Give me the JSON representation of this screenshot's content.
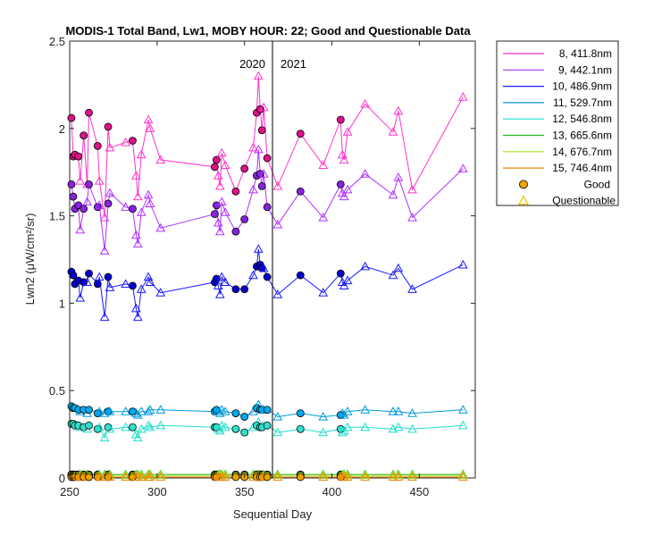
{
  "chart_data": {
    "type": "line",
    "title": "MODIS-1 Total Band, Lw1, MOBY HOUR: 22;  Good and Questionable Data",
    "xlabel": "Sequential Day",
    "ylabel": "Lwn2 (μW/cm²/sr)",
    "xlim": [
      250,
      482
    ],
    "ylim": [
      0,
      2.5
    ],
    "xticks": [
      250,
      300,
      350,
      400,
      450
    ],
    "yticks": [
      0,
      0.5,
      1,
      1.5,
      2,
      2.5
    ],
    "xtick_labels": [
      "250",
      "300",
      "350",
      "400",
      "450"
    ],
    "ytick_labels": [
      "0",
      "0.5",
      "1",
      "1.5",
      "2",
      "2.5"
    ],
    "grid": false,
    "legend_position": "outside-top-right",
    "year_divider": {
      "x": 366,
      "left_label": "2020",
      "right_label": "2021"
    },
    "marker_legend": [
      {
        "label": "Good",
        "marker": "circle",
        "color": "#f0a500"
      },
      {
        "label": "Questionable",
        "marker": "triangle",
        "color": "#f0c000"
      }
    ],
    "x": [
      251,
      252,
      253,
      255,
      256,
      258,
      260,
      261,
      266,
      267,
      270,
      272,
      273,
      282,
      286,
      288,
      289,
      291,
      295,
      296,
      302,
      333,
      334,
      335,
      336,
      337,
      339,
      345,
      350,
      355,
      357,
      358,
      359,
      360,
      361,
      363,
      369,
      382,
      395,
      405,
      406,
      407,
      409,
      419,
      435,
      438,
      446,
      475
    ],
    "status": [
      "G",
      "G",
      "G",
      "G",
      "Q",
      "G",
      "Q",
      "G",
      "G",
      "Q",
      "Q",
      "G",
      "Q",
      "Q",
      "G",
      "Q",
      "Q",
      "Q",
      "Q",
      "Q",
      "Q",
      "G",
      "G",
      "Q",
      "Q",
      "Q",
      "Q",
      "G",
      "G",
      "Q",
      "G",
      "Q",
      "G",
      "G",
      "Q",
      "G",
      "Q",
      "G",
      "Q",
      "G",
      "Q",
      "Q",
      "Q",
      "Q",
      "Q",
      "Q",
      "Q",
      "Q"
    ],
    "series": [
      {
        "name": "8, 411.8nm",
        "color": "#ff33cc",
        "fill": "#dd1188",
        "values": [
          2.06,
          1.84,
          1.85,
          1.84,
          1.7,
          1.96,
          1.68,
          2.09,
          1.9,
          1.7,
          1.49,
          2.01,
          1.89,
          1.92,
          1.93,
          1.73,
          1.61,
          1.85,
          2.05,
          2.0,
          1.82,
          1.78,
          1.82,
          1.73,
          1.67,
          1.86,
          1.79,
          1.64,
          1.77,
          1.89,
          2.09,
          2.3,
          2.11,
          1.99,
          2.12,
          1.83,
          1.67,
          1.97,
          1.79,
          2.05,
          1.85,
          1.82,
          1.98,
          2.14,
          1.98,
          2.1,
          1.65,
          2.18
        ]
      },
      {
        "name": "9, 442.1nm",
        "color": "#b030ff",
        "fill": "#8822dd",
        "values": [
          1.68,
          1.61,
          1.54,
          1.56,
          1.42,
          1.54,
          1.58,
          1.68,
          1.55,
          1.56,
          1.3,
          1.57,
          1.63,
          1.55,
          1.54,
          1.39,
          1.34,
          1.52,
          1.62,
          1.57,
          1.43,
          1.51,
          1.56,
          1.46,
          1.41,
          1.58,
          1.52,
          1.41,
          1.48,
          1.65,
          1.73,
          1.88,
          1.74,
          1.67,
          1.74,
          1.55,
          1.45,
          1.64,
          1.49,
          1.68,
          1.63,
          1.61,
          1.65,
          1.74,
          1.62,
          1.72,
          1.49,
          1.77
        ]
      },
      {
        "name": "10, 486.9nm",
        "color": "#1a1aff",
        "fill": "#0000cc",
        "values": [
          1.18,
          1.16,
          1.11,
          1.13,
          1.03,
          1.12,
          1.12,
          1.17,
          1.11,
          1.15,
          0.92,
          1.15,
          1.09,
          1.11,
          1.1,
          0.97,
          0.92,
          1.08,
          1.15,
          1.12,
          1.06,
          1.12,
          1.14,
          1.1,
          1.05,
          1.15,
          1.12,
          1.08,
          1.08,
          1.16,
          1.21,
          1.31,
          1.22,
          1.2,
          1.2,
          1.15,
          1.05,
          1.16,
          1.06,
          1.17,
          1.12,
          1.1,
          1.13,
          1.21,
          1.16,
          1.2,
          1.08,
          1.22
        ]
      },
      {
        "name": "11, 529.7nm",
        "color": "#0099dd",
        "fill": "#00aaee",
        "values": [
          0.41,
          0.4,
          0.4,
          0.39,
          0.38,
          0.39,
          0.37,
          0.39,
          0.37,
          0.38,
          0.37,
          0.38,
          0.38,
          0.38,
          0.38,
          0.37,
          0.36,
          0.38,
          0.38,
          0.39,
          0.39,
          0.38,
          0.39,
          0.38,
          0.37,
          0.39,
          0.38,
          0.37,
          0.35,
          0.38,
          0.4,
          0.42,
          0.39,
          0.39,
          0.39,
          0.39,
          0.35,
          0.37,
          0.35,
          0.36,
          0.37,
          0.36,
          0.38,
          0.39,
          0.38,
          0.38,
          0.37,
          0.39
        ]
      },
      {
        "name": "12, 546.8nm",
        "color": "#22ddcc",
        "fill": "#33e0cc",
        "values": [
          0.31,
          0.31,
          0.3,
          0.3,
          0.29,
          0.29,
          0.28,
          0.3,
          0.28,
          0.29,
          0.23,
          0.29,
          0.28,
          0.29,
          0.29,
          0.25,
          0.23,
          0.28,
          0.3,
          0.29,
          0.3,
          0.29,
          0.29,
          0.28,
          0.27,
          0.3,
          0.29,
          0.28,
          0.26,
          0.29,
          0.3,
          0.32,
          0.29,
          0.29,
          0.3,
          0.3,
          0.26,
          0.28,
          0.26,
          0.28,
          0.26,
          0.27,
          0.29,
          0.29,
          0.28,
          0.29,
          0.28,
          0.3
        ]
      },
      {
        "name": "13, 665.6nm",
        "color": "#22bb22",
        "fill": "#33cc33",
        "values": [
          0.02,
          0.02,
          0.02,
          0.02,
          0.02,
          0.02,
          0.02,
          0.02,
          0.02,
          0.02,
          0.02,
          0.02,
          0.02,
          0.02,
          0.02,
          0.02,
          0.02,
          0.02,
          0.02,
          0.02,
          0.02,
          0.02,
          0.02,
          0.02,
          0.02,
          0.02,
          0.02,
          0.02,
          0.02,
          0.02,
          0.02,
          0.02,
          0.02,
          0.02,
          0.02,
          0.02,
          0.02,
          0.02,
          0.02,
          0.02,
          0.02,
          0.02,
          0.02,
          0.02,
          0.02,
          0.02,
          0.02,
          0.02
        ]
      },
      {
        "name": "14, 676.7nm",
        "color": "#aadd22",
        "fill": "#bbee33",
        "values": [
          0.015,
          0.015,
          0.015,
          0.015,
          0.015,
          0.015,
          0.015,
          0.015,
          0.015,
          0.015,
          0.015,
          0.015,
          0.015,
          0.015,
          0.015,
          0.015,
          0.015,
          0.015,
          0.015,
          0.015,
          0.015,
          0.015,
          0.015,
          0.015,
          0.015,
          0.015,
          0.015,
          0.015,
          0.015,
          0.015,
          0.015,
          0.015,
          0.015,
          0.015,
          0.015,
          0.015,
          0.015,
          0.015,
          0.015,
          0.015,
          0.015,
          0.015,
          0.015,
          0.015,
          0.015,
          0.015,
          0.015,
          0.015
        ]
      },
      {
        "name": "15, 746.4nm",
        "color": "#ee8800",
        "fill": "#f0a000",
        "values": [
          0.005,
          0.005,
          0.005,
          0.005,
          0.005,
          0.005,
          0.005,
          0.005,
          0.005,
          0.005,
          0.005,
          0.005,
          0.005,
          0.005,
          0.005,
          0.005,
          0.005,
          0.005,
          0.005,
          0.005,
          0.005,
          0.005,
          0.005,
          0.005,
          0.005,
          0.005,
          0.005,
          0.005,
          0.005,
          0.005,
          0.005,
          0.005,
          0.005,
          0.005,
          0.005,
          0.005,
          0.005,
          0.005,
          0.005,
          0.005,
          0.005,
          0.005,
          0.005,
          0.005,
          0.005,
          0.005,
          0.005,
          0.005
        ]
      }
    ]
  }
}
